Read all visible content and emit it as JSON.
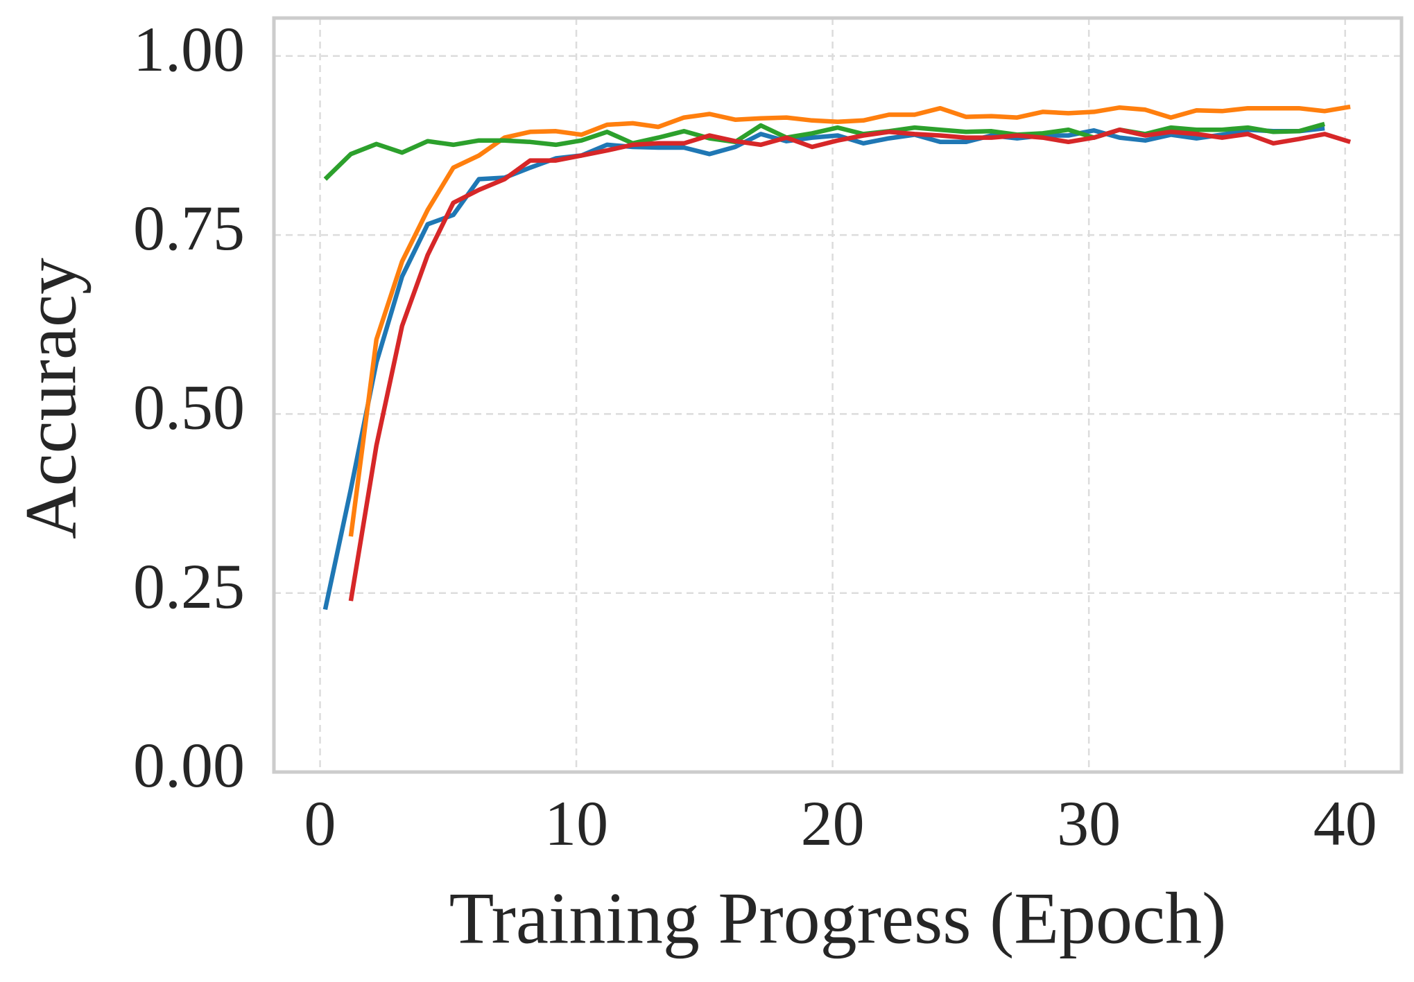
{
  "chart_data": {
    "type": "line",
    "x_label": "Training Progress (Epoch)",
    "y_label": "Accuracy",
    "xlim": [
      -1.8,
      42.2
    ],
    "ylim": [
      0,
      1.053
    ],
    "xticks": [
      0,
      10,
      20,
      30,
      40
    ],
    "yticks": [
      {
        "value": 0,
        "label": "0.00"
      },
      {
        "value": 0.25,
        "label": "0.25"
      },
      {
        "value": 0.5,
        "label": "0.50"
      },
      {
        "value": 0.75,
        "label": "0.75"
      },
      {
        "value": 1,
        "label": "1.00"
      }
    ],
    "grid": true,
    "series": [
      {
        "color": "#1f77b4",
        "x": [
          0.2,
          1.2,
          2.2,
          3.2,
          4.2,
          5.2,
          6.2,
          7.2,
          8.2,
          9.2,
          10.2,
          11.2,
          12.2,
          13.2,
          14.2,
          15.2,
          16.2,
          17.2,
          18.2,
          19.2,
          20.2,
          21.2,
          22.2,
          23.2,
          24.2,
          25.2,
          26.2,
          27.2,
          28.2,
          29.2,
          30.2,
          31.2,
          32.2,
          33.2,
          34.2,
          35.2,
          36.2,
          37.2,
          38.2,
          39.2
        ],
        "values": [
          0.227,
          0.395,
          0.572,
          0.692,
          0.765,
          0.778,
          0.828,
          0.83,
          0.844,
          0.857,
          0.861,
          0.876,
          0.873,
          0.872,
          0.872,
          0.863,
          0.873,
          0.891,
          0.881,
          0.886,
          0.889,
          0.878,
          0.885,
          0.89,
          0.88,
          0.88,
          0.889,
          0.885,
          0.889,
          0.889,
          0.896,
          0.886,
          0.882,
          0.89,
          0.885,
          0.89,
          0.897,
          0.895,
          0.895,
          0.899
        ]
      },
      {
        "color": "#ff7f0e",
        "x": [
          1.2,
          2.2,
          3.2,
          4.2,
          5.2,
          6.2,
          7.2,
          8.2,
          9.2,
          10.2,
          11.2,
          12.2,
          13.2,
          14.2,
          15.2,
          16.2,
          17.2,
          18.2,
          19.2,
          20.2,
          21.2,
          22.2,
          23.2,
          24.2,
          25.2,
          26.2,
          27.2,
          28.2,
          29.2,
          30.2,
          31.2,
          32.2,
          33.2,
          34.2,
          35.2,
          36.2,
          37.2,
          38.2,
          39.2,
          40.2
        ],
        "values": [
          0.329,
          0.604,
          0.713,
          0.785,
          0.844,
          0.861,
          0.886,
          0.894,
          0.895,
          0.89,
          0.904,
          0.906,
          0.901,
          0.914,
          0.919,
          0.911,
          0.913,
          0.914,
          0.91,
          0.908,
          0.91,
          0.918,
          0.918,
          0.927,
          0.915,
          0.916,
          0.914,
          0.922,
          0.92,
          0.922,
          0.928,
          0.925,
          0.914,
          0.924,
          0.923,
          0.927,
          0.927,
          0.927,
          0.923,
          0.929
        ]
      },
      {
        "color": "#2ca02c",
        "x": [
          0.2,
          1.2,
          2.2,
          3.2,
          4.2,
          5.2,
          6.2,
          7.2,
          8.2,
          9.2,
          10.2,
          11.2,
          12.2,
          13.2,
          14.2,
          15.2,
          16.2,
          17.2,
          18.2,
          19.2,
          20.2,
          21.2,
          22.2,
          23.2,
          24.2,
          25.2,
          26.2,
          27.2,
          28.2,
          29.2,
          30.2,
          31.2,
          32.2,
          33.2,
          34.2,
          35.2,
          36.2,
          37.2,
          38.2,
          39.2
        ],
        "values": [
          0.828,
          0.863,
          0.877,
          0.865,
          0.881,
          0.876,
          0.882,
          0.882,
          0.88,
          0.876,
          0.882,
          0.894,
          0.878,
          0.886,
          0.895,
          0.885,
          0.88,
          0.903,
          0.886,
          0.892,
          0.9,
          0.891,
          0.895,
          0.9,
          0.897,
          0.894,
          0.895,
          0.89,
          0.892,
          0.897,
          0.886,
          0.897,
          0.891,
          0.9,
          0.897,
          0.897,
          0.9,
          0.894,
          0.895,
          0.905
        ]
      },
      {
        "color": "#d62728",
        "x": [
          1.2,
          2.2,
          3.2,
          4.2,
          5.2,
          6.2,
          7.2,
          8.2,
          9.2,
          10.2,
          11.2,
          12.2,
          13.2,
          14.2,
          15.2,
          16.2,
          17.2,
          18.2,
          19.2,
          20.2,
          21.2,
          22.2,
          23.2,
          24.2,
          25.2,
          26.2,
          27.2,
          28.2,
          29.2,
          30.2,
          31.2,
          32.2,
          33.2,
          34.2,
          35.2,
          36.2,
          37.2,
          38.2,
          39.2,
          40.2
        ],
        "values": [
          0.239,
          0.456,
          0.623,
          0.722,
          0.795,
          0.813,
          0.828,
          0.854,
          0.854,
          0.861,
          0.868,
          0.876,
          0.878,
          0.878,
          0.889,
          0.881,
          0.876,
          0.886,
          0.873,
          0.882,
          0.889,
          0.894,
          0.891,
          0.889,
          0.886,
          0.886,
          0.889,
          0.886,
          0.88,
          0.886,
          0.897,
          0.889,
          0.894,
          0.891,
          0.886,
          0.891,
          0.878,
          0.884,
          0.891,
          0.88
        ]
      }
    ]
  }
}
